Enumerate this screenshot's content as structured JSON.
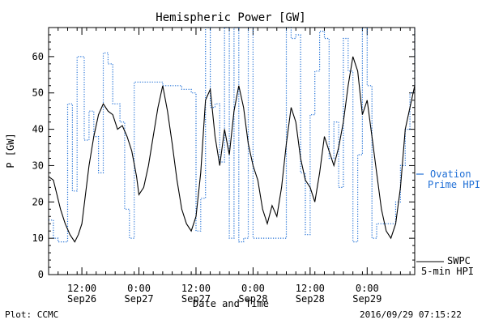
{
  "chart_data": {
    "type": "line",
    "title": "Hemispheric Power [GW]",
    "ylabel": "P [GW]",
    "xlabel": "Date and Time",
    "ylim": [
      0,
      68
    ],
    "yticks": [
      0,
      10,
      20,
      30,
      40,
      50,
      60
    ],
    "xlim": [
      "2016-09-26T05:00",
      "2016-09-29T10:00"
    ],
    "x_ticks": [
      {
        "time": "2016-09-26T12:00",
        "line1": "12:00",
        "line2": "Sep26"
      },
      {
        "time": "2016-09-27T00:00",
        "line1": "0:00",
        "line2": "Sep27"
      },
      {
        "time": "2016-09-27T12:00",
        "line1": "12:00",
        "line2": "Sep27"
      },
      {
        "time": "2016-09-28T00:00",
        "line1": "0:00",
        "line2": "Sep28"
      },
      {
        "time": "2016-09-28T12:00",
        "line1": "12:00",
        "line2": "Sep28"
      },
      {
        "time": "2016-09-29T00:00",
        "line1": "0:00",
        "line2": "Sep29"
      }
    ],
    "series": [
      {
        "name": "SWPC 5-min HPI",
        "color": "#000000",
        "style": "solid",
        "points": [
          [
            "2016-09-26T05:00",
            27
          ],
          [
            "2016-09-26T06:00",
            26
          ],
          [
            "2016-09-26T06:45",
            22
          ],
          [
            "2016-09-26T07:30",
            18
          ],
          [
            "2016-09-26T08:30",
            14
          ],
          [
            "2016-09-26T09:30",
            11
          ],
          [
            "2016-09-26T10:30",
            9
          ],
          [
            "2016-09-26T11:15",
            11
          ],
          [
            "2016-09-26T12:00",
            14
          ],
          [
            "2016-09-26T12:45",
            22
          ],
          [
            "2016-09-26T13:30",
            30
          ],
          [
            "2016-09-26T14:30",
            38
          ],
          [
            "2016-09-26T15:30",
            44
          ],
          [
            "2016-09-26T16:30",
            47
          ],
          [
            "2016-09-26T17:30",
            45
          ],
          [
            "2016-09-26T18:30",
            44
          ],
          [
            "2016-09-26T19:30",
            40
          ],
          [
            "2016-09-26T20:30",
            41
          ],
          [
            "2016-09-26T21:30",
            38
          ],
          [
            "2016-09-26T22:30",
            34
          ],
          [
            "2016-09-26T23:30",
            27
          ],
          [
            "2016-09-27T00:00",
            22
          ],
          [
            "2016-09-27T01:00",
            24
          ],
          [
            "2016-09-27T02:00",
            30
          ],
          [
            "2016-09-27T03:00",
            38
          ],
          [
            "2016-09-27T04:00",
            46
          ],
          [
            "2016-09-27T05:00",
            52
          ],
          [
            "2016-09-27T06:00",
            45
          ],
          [
            "2016-09-27T07:00",
            36
          ],
          [
            "2016-09-27T08:00",
            26
          ],
          [
            "2016-09-27T09:00",
            18
          ],
          [
            "2016-09-27T10:00",
            14
          ],
          [
            "2016-09-27T11:00",
            12
          ],
          [
            "2016-09-27T12:00",
            16
          ],
          [
            "2016-09-27T13:00",
            28
          ],
          [
            "2016-09-27T14:00",
            48
          ],
          [
            "2016-09-27T15:00",
            51
          ],
          [
            "2016-09-27T16:00",
            38
          ],
          [
            "2016-09-27T17:00",
            30
          ],
          [
            "2016-09-27T18:00",
            40
          ],
          [
            "2016-09-27T19:00",
            33
          ],
          [
            "2016-09-27T20:00",
            45
          ],
          [
            "2016-09-27T21:00",
            52
          ],
          [
            "2016-09-27T22:00",
            46
          ],
          [
            "2016-09-27T23:00",
            36
          ],
          [
            "2016-09-28T00:00",
            30
          ],
          [
            "2016-09-28T01:00",
            26
          ],
          [
            "2016-09-28T02:00",
            18
          ],
          [
            "2016-09-28T03:00",
            14
          ],
          [
            "2016-09-28T04:00",
            19
          ],
          [
            "2016-09-28T05:00",
            16
          ],
          [
            "2016-09-28T06:00",
            24
          ],
          [
            "2016-09-28T07:00",
            36
          ],
          [
            "2016-09-28T08:00",
            46
          ],
          [
            "2016-09-28T09:00",
            42
          ],
          [
            "2016-09-28T10:00",
            32
          ],
          [
            "2016-09-28T11:00",
            26
          ],
          [
            "2016-09-28T12:00",
            24
          ],
          [
            "2016-09-28T13:00",
            20
          ],
          [
            "2016-09-28T14:00",
            28
          ],
          [
            "2016-09-28T15:00",
            38
          ],
          [
            "2016-09-28T16:00",
            34
          ],
          [
            "2016-09-28T17:00",
            30
          ],
          [
            "2016-09-28T18:00",
            35
          ],
          [
            "2016-09-28T19:00",
            42
          ],
          [
            "2016-09-28T20:00",
            52
          ],
          [
            "2016-09-28T21:00",
            60
          ],
          [
            "2016-09-28T22:00",
            56
          ],
          [
            "2016-09-28T23:00",
            44
          ],
          [
            "2016-09-29T00:00",
            48
          ],
          [
            "2016-09-29T01:00",
            38
          ],
          [
            "2016-09-29T02:00",
            28
          ],
          [
            "2016-09-29T03:00",
            18
          ],
          [
            "2016-09-29T04:00",
            12
          ],
          [
            "2016-09-29T05:00",
            10
          ],
          [
            "2016-09-29T06:00",
            14
          ],
          [
            "2016-09-29T07:00",
            24
          ],
          [
            "2016-09-29T08:00",
            40
          ],
          [
            "2016-09-29T09:00",
            46
          ],
          [
            "2016-09-29T10:00",
            52
          ]
        ]
      },
      {
        "name": "Ovation Prime HPI",
        "color": "#1f6fd6",
        "style": "dotted",
        "points": [
          [
            "2016-09-26T05:00",
            15
          ],
          [
            "2016-09-26T06:00",
            10
          ],
          [
            "2016-09-26T07:00",
            9
          ],
          [
            "2016-09-26T08:00",
            9
          ],
          [
            "2016-09-26T09:00",
            47
          ],
          [
            "2016-09-26T10:00",
            23
          ],
          [
            "2016-09-26T11:00",
            60
          ],
          [
            "2016-09-26T12:30",
            37
          ],
          [
            "2016-09-26T13:30",
            45
          ],
          [
            "2016-09-26T14:30",
            38
          ],
          [
            "2016-09-26T15:30",
            28
          ],
          [
            "2016-09-26T16:30",
            61
          ],
          [
            "2016-09-26T17:30",
            58
          ],
          [
            "2016-09-26T18:30",
            47
          ],
          [
            "2016-09-26T20:00",
            42
          ],
          [
            "2016-09-26T21:00",
            18
          ],
          [
            "2016-09-26T22:00",
            10
          ],
          [
            "2016-09-26T23:00",
            53
          ],
          [
            "2016-09-27T01:00",
            53
          ],
          [
            "2016-09-27T03:00",
            53
          ],
          [
            "2016-09-27T05:00",
            52
          ],
          [
            "2016-09-27T07:00",
            52
          ],
          [
            "2016-09-27T09:00",
            51
          ],
          [
            "2016-09-27T11:00",
            50
          ],
          [
            "2016-09-27T12:00",
            12
          ],
          [
            "2016-09-27T13:00",
            21
          ],
          [
            "2016-09-27T14:00",
            68
          ],
          [
            "2016-09-27T15:00",
            46
          ],
          [
            "2016-09-27T16:00",
            47
          ],
          [
            "2016-09-27T17:00",
            31
          ],
          [
            "2016-09-27T18:00",
            68
          ],
          [
            "2016-09-27T19:00",
            10
          ],
          [
            "2016-09-27T20:00",
            68
          ],
          [
            "2016-09-27T21:00",
            9
          ],
          [
            "2016-09-27T22:00",
            10
          ],
          [
            "2016-09-27T23:00",
            68
          ],
          [
            "2016-09-28T00:00",
            10
          ],
          [
            "2016-09-28T02:00",
            10
          ],
          [
            "2016-09-28T04:00",
            10
          ],
          [
            "2016-09-28T06:00",
            10
          ],
          [
            "2016-09-28T07:00",
            68
          ],
          [
            "2016-09-28T08:00",
            65
          ],
          [
            "2016-09-28T09:00",
            66
          ],
          [
            "2016-09-28T10:00",
            28
          ],
          [
            "2016-09-28T11:00",
            11
          ],
          [
            "2016-09-28T12:00",
            44
          ],
          [
            "2016-09-28T13:00",
            56
          ],
          [
            "2016-09-28T14:00",
            67
          ],
          [
            "2016-09-28T15:00",
            65
          ],
          [
            "2016-09-28T16:00",
            32
          ],
          [
            "2016-09-28T17:00",
            42
          ],
          [
            "2016-09-28T18:00",
            24
          ],
          [
            "2016-09-28T19:00",
            65
          ],
          [
            "2016-09-28T20:00",
            56
          ],
          [
            "2016-09-28T21:00",
            9
          ],
          [
            "2016-09-28T22:00",
            33
          ],
          [
            "2016-09-28T23:00",
            68
          ],
          [
            "2016-09-29T00:00",
            52
          ],
          [
            "2016-09-29T01:00",
            10
          ],
          [
            "2016-09-29T02:00",
            14
          ],
          [
            "2016-09-29T03:00",
            14
          ],
          [
            "2016-09-29T04:00",
            14
          ],
          [
            "2016-09-29T05:00",
            14
          ],
          [
            "2016-09-29T06:00",
            20
          ],
          [
            "2016-09-29T07:00",
            30
          ],
          [
            "2016-09-29T08:00",
            40
          ],
          [
            "2016-09-29T09:00",
            50
          ],
          [
            "2016-09-29T10:00",
            68
          ]
        ]
      }
    ],
    "legend": {
      "placement": "right",
      "ovation_line1": "Ovation",
      "ovation_line2": "Prime HPI",
      "swpc_line1": "SWPC",
      "swpc_line2": "5-min HPI"
    }
  },
  "footer": {
    "plot_credit": "Plot: CCMC",
    "timestamp": "2016/09/29 07:15:22"
  }
}
